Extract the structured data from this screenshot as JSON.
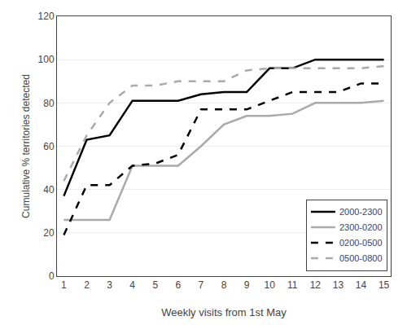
{
  "chart_data": {
    "type": "line",
    "x_label": "Weekly visits from 1st May",
    "y_label": "Cumulative % territories detected",
    "x": [
      1,
      2,
      3,
      4,
      5,
      6,
      7,
      8,
      9,
      10,
      11,
      12,
      13,
      14,
      15
    ],
    "series": [
      {
        "name": "2000-2300",
        "color": "#000000",
        "line_style": "solid",
        "values": [
          37,
          63,
          65,
          81,
          81,
          81,
          84,
          85,
          85,
          96,
          96,
          100,
          100,
          100,
          100
        ]
      },
      {
        "name": "2300-0200",
        "color": "#aaaaaa",
        "line_style": "solid",
        "values": [
          26,
          26,
          26,
          51,
          51,
          51,
          60,
          70,
          74,
          74,
          75,
          80,
          80,
          80,
          81
        ]
      },
      {
        "name": "0200-0500",
        "color": "#000000",
        "line_style": "dashed",
        "values": [
          19,
          42,
          42,
          51,
          52,
          56,
          77,
          77,
          77,
          81,
          85,
          85,
          85,
          89,
          89
        ]
      },
      {
        "name": "0500-0800",
        "color": "#aaaaaa",
        "line_style": "dashed",
        "values": [
          44,
          65,
          80,
          88,
          88,
          90,
          90,
          90,
          95,
          96,
          96,
          96,
          96,
          96,
          97
        ]
      }
    ],
    "xlim": [
      0.7,
      15.3
    ],
    "xticks": [
      1,
      2,
      3,
      4,
      5,
      6,
      7,
      8,
      9,
      10,
      11,
      12,
      13,
      14,
      15
    ],
    "ylim": [
      0,
      120
    ],
    "yticks": [
      0,
      20,
      40,
      60,
      80,
      100,
      120
    ],
    "grid": "y",
    "legend": "lower right"
  }
}
